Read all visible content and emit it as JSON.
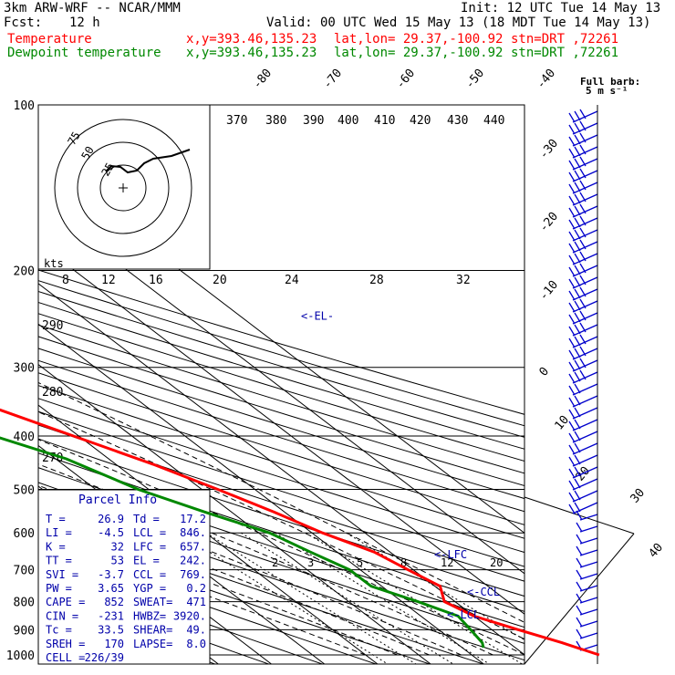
{
  "header": {
    "model": "3km ARW-WRF -- NCAR/MMM",
    "init": "Init: 12 UTC Tue 14 May 13",
    "fcst_label": "Fcst:",
    "fcst_value": "12 h",
    "valid": "Valid: 00 UTC Wed 15 May 13 (18 MDT Tue 14 May 13)",
    "temp_label": "Temperature",
    "temp_xy": "x,y=393.46,135.23",
    "temp_latlon": "lat,lon= 29.37,-100.92",
    "temp_stn": "stn=DRT ,72261",
    "dew_label": "Dewpoint temperature",
    "dew_xy": "x,y=393.46,135.23",
    "dew_latlon": "lat,lon= 29.37,-100.92",
    "dew_stn": "stn=DRT ,72261",
    "barb_label_1": "Full barb:",
    "barb_label_2": "5 m s⁻¹"
  },
  "chart_data": {
    "type": "line",
    "chart_kind": "Skew-T log-P diagram",
    "pressure_levels": [
      "100",
      "200",
      "300",
      "400",
      "500",
      "600",
      "700",
      "800",
      "900",
      "1000"
    ],
    "isotherm_labels": [
      "-80",
      "-70",
      "-60",
      "-50",
      "-40",
      "-30",
      "-20",
      "-10",
      "0",
      "10",
      "20",
      "30",
      "40"
    ],
    "theta_labels": [
      "370",
      "380",
      "390",
      "400",
      "410",
      "420",
      "430",
      "440"
    ],
    "theta_left_labels": [
      "290",
      "280",
      "270"
    ],
    "mixing_ratio_labels": [
      "2",
      "3",
      "5",
      "8",
      "12",
      "20"
    ],
    "hodo_speed_labels": [
      "8",
      "12",
      "16",
      "20",
      "24",
      "28",
      "32"
    ],
    "hodo_units": "kts",
    "hodo_ring_labels": [
      "75",
      "50",
      "25"
    ],
    "levels_marked": [
      {
        "label": "<-EL-",
        "p": 242
      },
      {
        "label": "<-LFC",
        "p": 657
      },
      {
        "label": "<-CCL",
        "p": 769
      },
      {
        "label": "<-LCL",
        "p": 846
      }
    ],
    "series": [
      {
        "name": "Temperature",
        "color": "#ff0000",
        "points": [
          [
            100,
            -40
          ],
          [
            125,
            -41
          ],
          [
            150,
            -47
          ],
          [
            175,
            -52
          ],
          [
            200,
            -51
          ],
          [
            250,
            -42
          ],
          [
            300,
            -30
          ],
          [
            350,
            -20
          ],
          [
            400,
            -11
          ],
          [
            450,
            -3
          ],
          [
            500,
            3
          ],
          [
            550,
            8
          ],
          [
            600,
            12
          ],
          [
            650,
            17
          ],
          [
            700,
            19
          ],
          [
            750,
            21
          ],
          [
            800,
            18
          ],
          [
            850,
            20
          ],
          [
            900,
            25
          ],
          [
            950,
            30
          ],
          [
            1000,
            34
          ]
        ]
      },
      {
        "name": "Dewpoint temperature",
        "color": "#008800",
        "points": [
          [
            100,
            -60
          ],
          [
            125,
            -58
          ],
          [
            150,
            -64
          ],
          [
            175,
            -70
          ],
          [
            200,
            -71
          ],
          [
            220,
            -68
          ],
          [
            250,
            -60
          ],
          [
            300,
            -45
          ],
          [
            340,
            -42
          ],
          [
            360,
            -37
          ],
          [
            400,
            -26
          ],
          [
            440,
            -18
          ],
          [
            500,
            -12
          ],
          [
            550,
            -5
          ],
          [
            600,
            2
          ],
          [
            650,
            5
          ],
          [
            700,
            8
          ],
          [
            750,
            8
          ],
          [
            800,
            13
          ],
          [
            850,
            17
          ],
          [
            900,
            16
          ],
          [
            950,
            15
          ],
          [
            970,
            14
          ]
        ]
      }
    ]
  },
  "parcel_info": {
    "title": "Parcel Info",
    "rows": [
      [
        "T  =",
        "26.9",
        "Td =",
        "17.2"
      ],
      [
        "LI =",
        "-4.5",
        "LCL =",
        "846."
      ],
      [
        "K  =",
        "32",
        "LFC =",
        "657."
      ],
      [
        "TT =",
        "53",
        "EL =",
        "242."
      ],
      [
        "SVI =",
        "-3.7",
        "CCL =",
        "769."
      ],
      [
        "PW =",
        "3.65",
        "YGP =",
        "0.2"
      ],
      [
        "CAPE =",
        "852",
        "SWEAT=",
        "471"
      ],
      [
        "CIN =",
        "-231",
        "HWBZ=",
        "3920."
      ],
      [
        "Tc =",
        "33.5",
        "SHEAR=",
        "49."
      ],
      [
        "SREH =",
        "170",
        "LAPSE=",
        "8.0"
      ],
      [
        "CELL =",
        "226/39",
        "",
        ""
      ]
    ]
  }
}
